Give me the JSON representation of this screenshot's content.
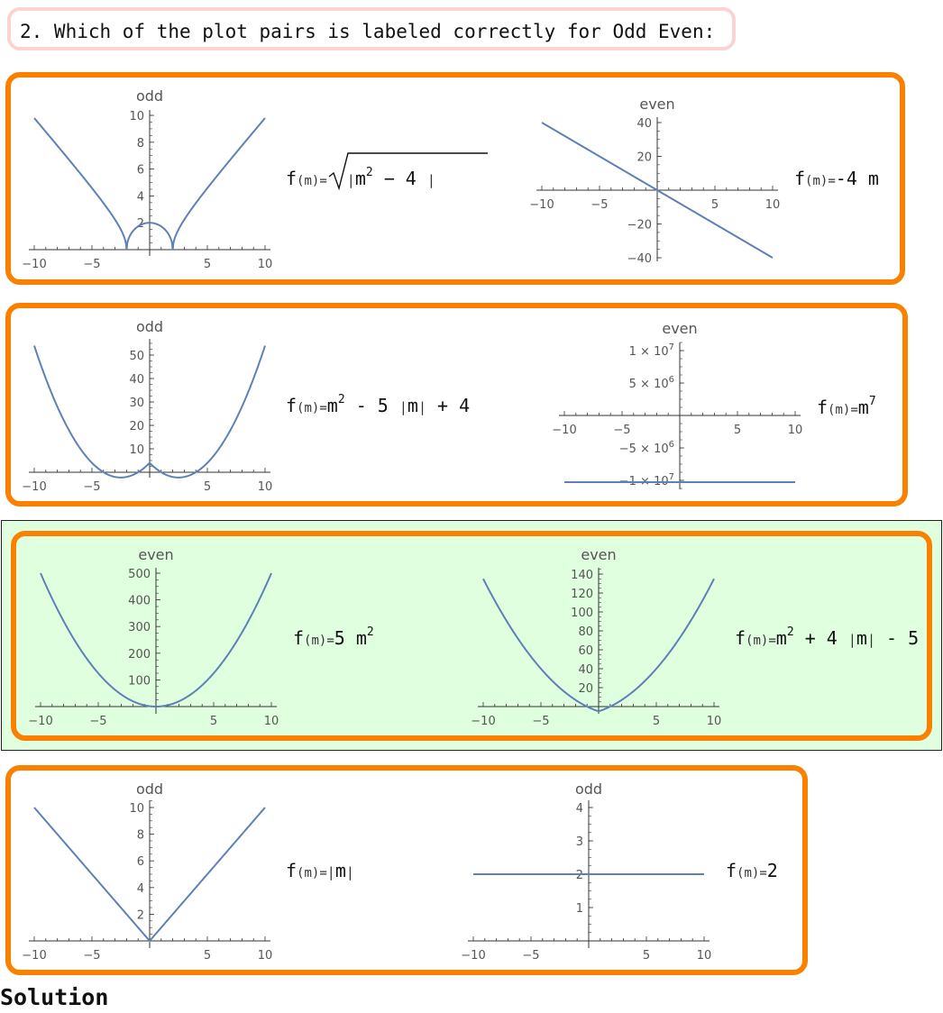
{
  "question": {
    "text": "2. Which of the plot pairs is labeled correctly for Odd Even:"
  },
  "colors": {
    "curve": "#5e81b5",
    "option_border": "#fa8100",
    "selected_bg": "#dfffdf",
    "question_border": "#fbd3d3",
    "axis": "#333333",
    "tick_label": "#555555"
  },
  "options": [
    {
      "selected": false,
      "left": {
        "title": "odd",
        "formula": {
          "f": "f",
          "arg": "(m)",
          "eq": "=",
          "body": "m2 - 4",
          "exp": "2"
        }
      },
      "right": {
        "title": "even",
        "formula": {
          "f": "f",
          "arg": "(m)",
          "eq": "=",
          "body": "-4 m"
        }
      }
    },
    {
      "selected": false,
      "left": {
        "title": "odd",
        "formula": {
          "f": "f",
          "arg": "(m)",
          "eq": "=",
          "body_a": "m",
          "exp": "2",
          "body_b": " - 5 ",
          "abs": "m",
          "body_c": " + 4"
        }
      },
      "right": {
        "title": "even",
        "formula": {
          "f": "f",
          "arg": "(m)",
          "eq": "=",
          "base": "m",
          "exp": "7"
        }
      }
    },
    {
      "selected": true,
      "left": {
        "title": "even",
        "formula": {
          "f": "f",
          "arg": "(m)",
          "eq": "=",
          "base": "5 m",
          "exp": "2"
        }
      },
      "right": {
        "title": "even",
        "formula": {
          "f": "f",
          "arg": "(m)",
          "eq": "=",
          "base": "m",
          "exp": "2",
          "body_b": " + 4 ",
          "abs": "m",
          "body_c": " - 5"
        }
      }
    },
    {
      "selected": false,
      "left": {
        "title": "odd",
        "formula": {
          "f": "f",
          "arg": "(m)",
          "eq": "=",
          "abs": "m"
        }
      },
      "right": {
        "title": "odd",
        "formula": {
          "f": "f",
          "arg": "(m)",
          "eq": "=",
          "body": "2"
        }
      }
    }
  ],
  "chart_data": [
    {
      "type": "line",
      "title": "odd",
      "function": "sqrt(|m^2-4|)",
      "xlim": [
        -10,
        10
      ],
      "xticks": [
        "-10",
        "-5",
        "5",
        "10"
      ],
      "yticks": [
        "2",
        "4",
        "6",
        "8",
        "10"
      ]
    },
    {
      "type": "line",
      "title": "even",
      "function": "-4m",
      "xlim": [
        -10,
        10
      ],
      "xticks": [
        "-10",
        "-5",
        "5",
        "10"
      ],
      "yticks": [
        "40",
        "20",
        "-20",
        "-40"
      ]
    },
    {
      "type": "line",
      "title": "odd",
      "function": "m^2-5|m|+4",
      "xlim": [
        -10,
        10
      ],
      "xticks": [
        "-10",
        "-5",
        "5",
        "10"
      ],
      "yticks": [
        "10",
        "20",
        "30",
        "40",
        "50"
      ]
    },
    {
      "type": "line",
      "title": "even",
      "function": "m^7",
      "xlim": [
        -10,
        10
      ],
      "xticks": [
        "-10",
        "-5",
        "5",
        "10"
      ],
      "yticks": [
        "1 × 10^7",
        "5 × 10^6",
        "-5 × 10^6",
        "-1 × 10^7"
      ]
    },
    {
      "type": "line",
      "title": "even",
      "function": "5m^2",
      "xlim": [
        -10,
        10
      ],
      "xticks": [
        "-10",
        "-5",
        "5",
        "10"
      ],
      "yticks": [
        "100",
        "200",
        "300",
        "400",
        "500"
      ]
    },
    {
      "type": "line",
      "title": "even",
      "function": "m^2+4|m|-5",
      "xlim": [
        -10,
        10
      ],
      "xticks": [
        "-10",
        "-5",
        "5",
        "10"
      ],
      "yticks": [
        "20",
        "40",
        "60",
        "80",
        "100",
        "120",
        "140"
      ]
    },
    {
      "type": "line",
      "title": "odd",
      "function": "|m|",
      "xlim": [
        -10,
        10
      ],
      "xticks": [
        "-10",
        "-5",
        "5",
        "10"
      ],
      "yticks": [
        "2",
        "4",
        "6",
        "8",
        "10"
      ]
    },
    {
      "type": "line",
      "title": "odd",
      "function": "2",
      "xlim": [
        -10,
        10
      ],
      "xticks": [
        "-10",
        "-5",
        "5",
        "10"
      ],
      "yticks": [
        "1",
        "2",
        "3",
        "4"
      ]
    }
  ],
  "solution": {
    "label": "Solution"
  }
}
